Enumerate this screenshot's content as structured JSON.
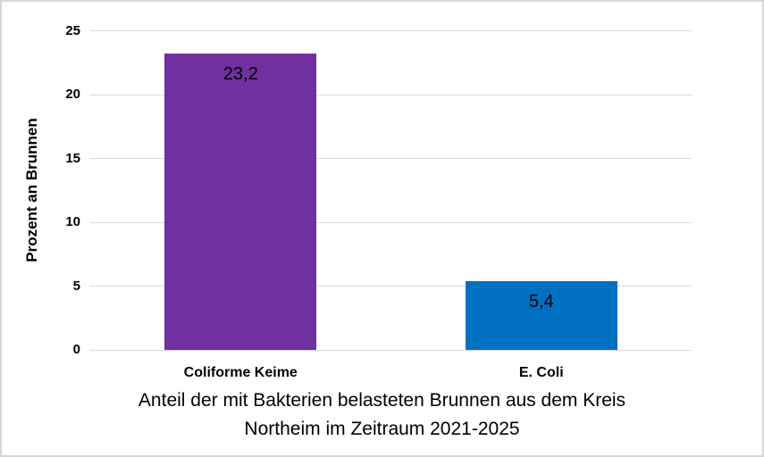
{
  "figure": {
    "background": "#ffffff",
    "border_color": "#d6d6d6"
  },
  "chart_data": {
    "type": "bar",
    "title": "Anteil der mit Bakterien belasteten Brunnen aus dem Kreis Northeim im Zeitraum 2021-2025",
    "title_lines": [
      "Anteil der mit Bakterien belasteten Brunnen aus dem Kreis",
      "Northeim im Zeitraum 2021-2025"
    ],
    "xlabel": "",
    "ylabel": "Prozent an Brunnen",
    "categories": [
      "Coliforme Keime",
      "E. Coli"
    ],
    "values": [
      23.2,
      5.4
    ],
    "value_labels": [
      "23,2",
      "5,4"
    ],
    "bar_colors": [
      "#7030a0",
      "#0070c0"
    ],
    "ylim": [
      0,
      25
    ],
    "yticks": [
      0,
      5,
      10,
      15,
      20,
      25
    ],
    "ytick_labels": [
      "0",
      "5",
      "10",
      "15",
      "20",
      "25"
    ],
    "grid": true,
    "gridline_color": "#d9d9d9",
    "legend": "none"
  }
}
